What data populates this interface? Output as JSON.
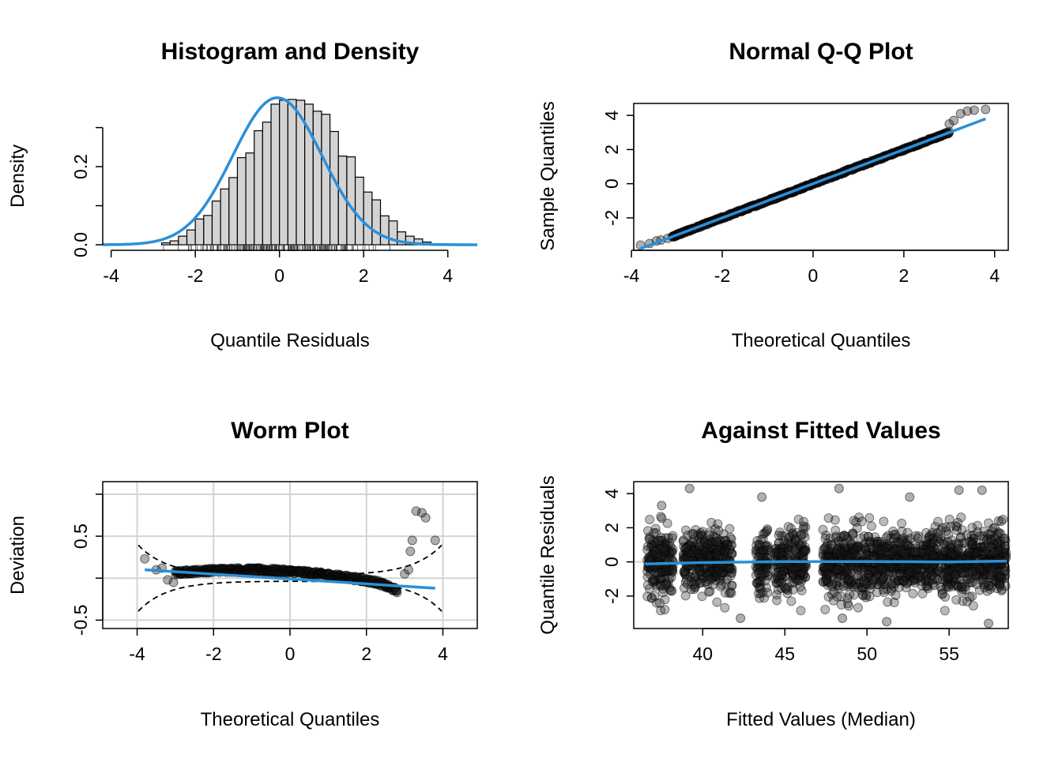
{
  "colors": {
    "smoother": "#2B8FD9",
    "bars": "#D3D3D3",
    "points": "#1A1A1A",
    "grid": "#D3D3D3",
    "axis": "#000000"
  },
  "chart_data": [
    {
      "type": "histogram",
      "title": "Histogram and Density",
      "xlabel": "Quantile Residuals",
      "ylabel": "Density",
      "xlim": [
        -4.2,
        4.7
      ],
      "ylim": [
        0,
        0.38
      ],
      "x_ticks": [
        -4,
        -2,
        0,
        2,
        4
      ],
      "y_ticks": [
        0.0,
        0.1,
        0.2,
        0.3
      ],
      "y_tick_labels": [
        "0.0",
        "",
        "0.2",
        ""
      ],
      "bin_width": 0.2,
      "bin_start": -2.8,
      "bin_heights": [
        0.005,
        0.01,
        0.022,
        0.038,
        0.066,
        0.075,
        0.112,
        0.143,
        0.172,
        0.223,
        0.235,
        0.292,
        0.314,
        0.36,
        0.37,
        0.372,
        0.37,
        0.36,
        0.342,
        0.334,
        0.29,
        0.227,
        0.225,
        0.173,
        0.135,
        0.115,
        0.074,
        0.061,
        0.033,
        0.022,
        0.015,
        0.007
      ],
      "density_curve": {
        "mean": -0.05,
        "sd": 1.06,
        "xrange": [
          -4.2,
          4.7
        ]
      },
      "rug": true
    },
    {
      "type": "scatter",
      "title": "Normal Q-Q Plot",
      "xlabel": "Theoretical Quantiles",
      "ylabel": "Sample Quantiles",
      "xlim": [
        -3.95,
        4.3
      ],
      "ylim": [
        -3.9,
        4.7
      ],
      "x_ticks": [
        -4,
        -2,
        0,
        2,
        4
      ],
      "y_ticks": [
        -2,
        0,
        2,
        4
      ],
      "reference_line": {
        "from": [
          -3.8,
          -3.8
        ],
        "to": [
          3.8,
          3.8
        ]
      },
      "points": [
        [
          -3.8,
          -3.6
        ],
        [
          -3.6,
          -3.5
        ],
        [
          -3.45,
          -3.35
        ],
        [
          -3.35,
          -3.3
        ],
        [
          -3.2,
          -3.2
        ],
        [
          3.0,
          3.5
        ],
        [
          3.1,
          3.7
        ],
        [
          3.25,
          4.1
        ],
        [
          3.4,
          4.25
        ],
        [
          3.55,
          4.3
        ],
        [
          3.8,
          4.35
        ]
      ]
    },
    {
      "type": "scatter",
      "title": "Worm Plot",
      "xlabel": "Theoretical Quantiles",
      "ylabel": "Deviation",
      "xlim": [
        -4.9,
        4.9
      ],
      "ylim": [
        -0.6,
        1.15
      ],
      "x_ticks": [
        -4,
        -2,
        0,
        2,
        4
      ],
      "y_ticks": [
        -0.5,
        0.0,
        0.5,
        1.0
      ],
      "y_tick_labels": [
        "-0.5",
        "",
        "0.5",
        ""
      ],
      "grid_x": [
        -4,
        -2,
        0,
        2,
        4
      ],
      "grid_y": [
        -0.5,
        0.0,
        0.5,
        1.0
      ],
      "fit_line": {
        "from": [
          -3.8,
          0.1
        ],
        "to": [
          3.8,
          -0.12
        ]
      },
      "points": [
        [
          -3.8,
          0.23
        ],
        [
          -3.5,
          0.1
        ],
        [
          -3.35,
          0.12
        ],
        [
          -3.2,
          -0.02
        ],
        [
          -3.05,
          -0.05
        ],
        [
          3.0,
          0.05
        ],
        [
          3.1,
          0.1
        ],
        [
          3.15,
          0.32
        ],
        [
          3.2,
          0.45
        ],
        [
          3.3,
          0.8
        ],
        [
          3.45,
          0.78
        ],
        [
          3.55,
          0.72
        ],
        [
          3.8,
          0.45
        ]
      ]
    },
    {
      "type": "scatter",
      "title": "Against Fitted Values",
      "xlabel": "Fitted Values (Median)",
      "ylabel": "Quantile Residuals",
      "xlim": [
        35.8,
        58.6
      ],
      "ylim": [
        -3.9,
        4.7
      ],
      "x_ticks": [
        40,
        45,
        50,
        55
      ],
      "y_ticks": [
        -2,
        0,
        2,
        4
      ],
      "hline": 0,
      "fit_line": [
        [
          36.5,
          -0.12
        ],
        [
          40,
          -0.04
        ],
        [
          45,
          0.02
        ],
        [
          50,
          0.02
        ],
        [
          55,
          0.0
        ],
        [
          58.5,
          0.05
        ]
      ],
      "dense_bands": [
        [
          36.6,
          38.2
        ],
        [
          38.8,
          40.8
        ],
        [
          40.8,
          41.8
        ],
        [
          43.2,
          44.0
        ],
        [
          44.4,
          46.3
        ],
        [
          47.3,
          52.0
        ],
        [
          52.0,
          58.5
        ]
      ],
      "outliers": [
        [
          39.2,
          4.3
        ],
        [
          43.6,
          3.8
        ],
        [
          48.3,
          4.3
        ],
        [
          52.6,
          3.8
        ],
        [
          55.6,
          4.2
        ],
        [
          57.0,
          4.2
        ],
        [
          42.3,
          -3.3
        ],
        [
          48.5,
          -3.3
        ],
        [
          51.2,
          -3.5
        ],
        [
          57.4,
          -3.6
        ],
        [
          37.5,
          3.3
        ]
      ]
    }
  ]
}
